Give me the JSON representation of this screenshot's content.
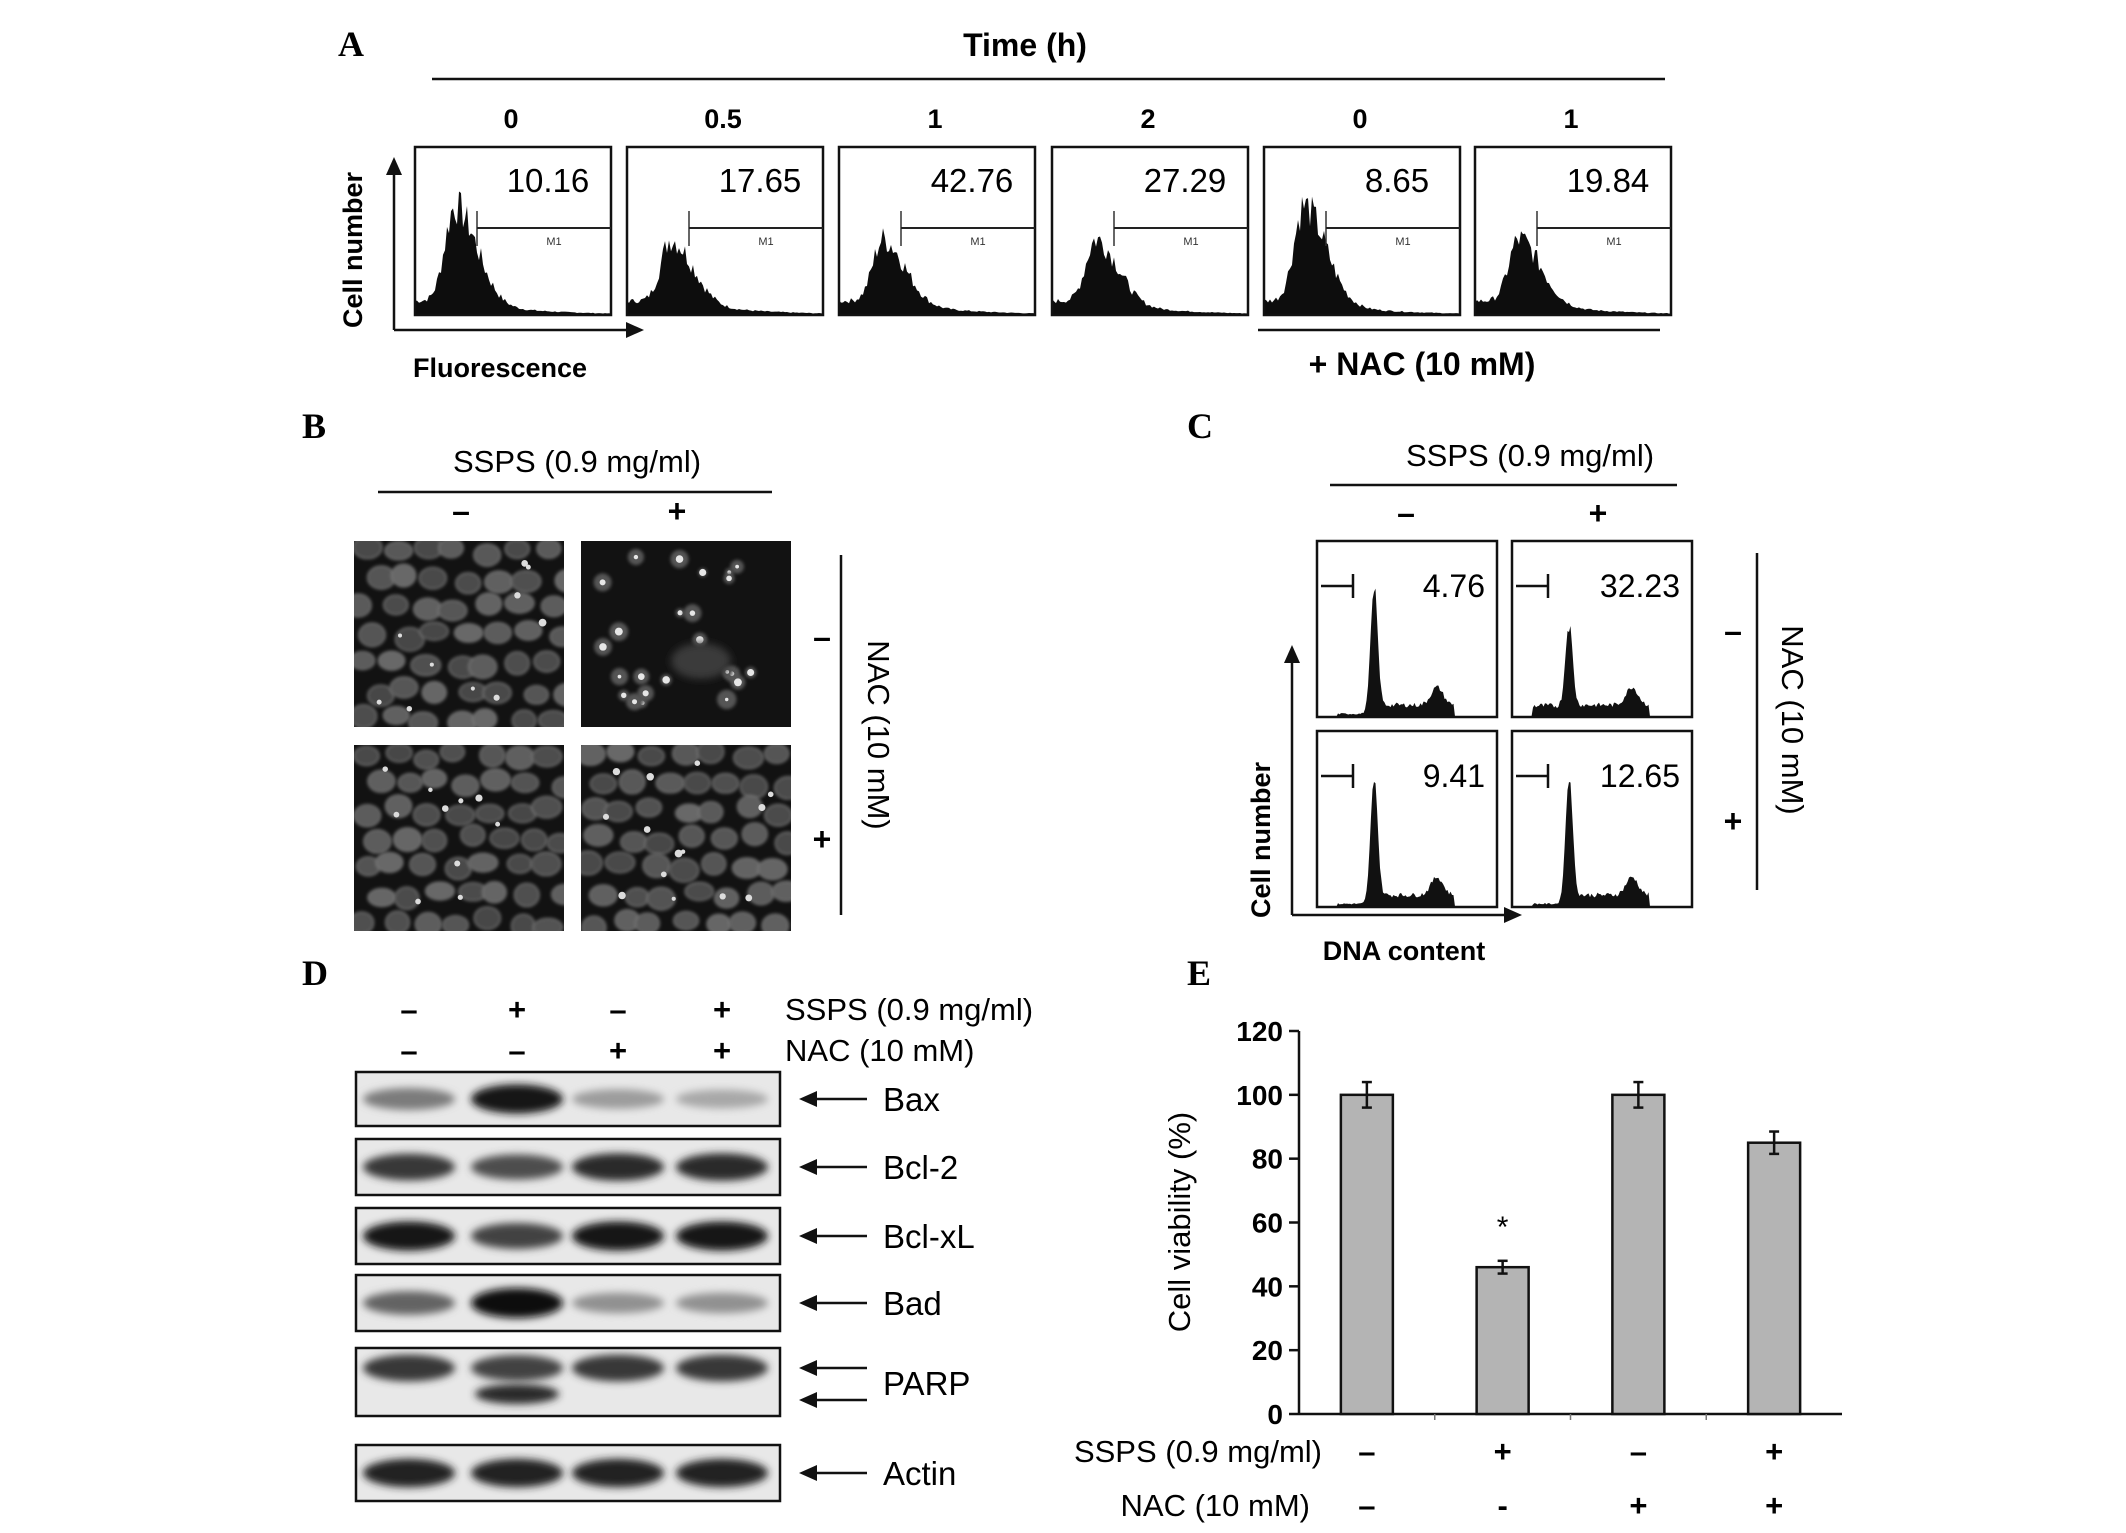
{
  "panelA": {
    "letter": "A",
    "time_header": "Time (h)",
    "y_label": "Cell number",
    "x_label": "Fluorescence",
    "gate_label": "M1",
    "nac_label": "+ NAC (10 mM)",
    "histograms": [
      {
        "time": "0",
        "value": "10.16"
      },
      {
        "time": "0.5",
        "value": "17.65"
      },
      {
        "time": "1",
        "value": "42.76"
      },
      {
        "time": "2",
        "value": "27.29"
      },
      {
        "time": "0",
        "value": "8.65"
      },
      {
        "time": "1",
        "value": "19.84"
      }
    ]
  },
  "panelB": {
    "letter": "B",
    "ssps_label": "SSPS (0.9 mg/ml)",
    "col_signs": [
      "–",
      "+"
    ],
    "row_signs": [
      "–",
      "+"
    ],
    "nac_label": "NAC (10 mM)"
  },
  "panelC": {
    "letter": "C",
    "ssps_label": "SSPS (0.9 mg/ml)",
    "col_signs": [
      "–",
      "+"
    ],
    "row_signs": [
      "–",
      "+"
    ],
    "nac_label": "NAC (10 mM)",
    "y_label": "Cell number",
    "x_label": "DNA content",
    "values": [
      "4.76",
      "32.23",
      "9.41",
      "12.65"
    ]
  },
  "panelD": {
    "letter": "D",
    "ssps_label": "SSPS (0.9 mg/ml)",
    "nac_label": "NAC (10 mM)",
    "ssps_signs": [
      "–",
      "+",
      "–",
      "+"
    ],
    "nac_signs": [
      "–",
      "–",
      "+",
      "+"
    ],
    "blots": [
      {
        "label": "Bax",
        "intensity": [
          0.5,
          0.95,
          0.35,
          0.3
        ]
      },
      {
        "label": "Bcl-2",
        "intensity": [
          0.8,
          0.7,
          0.85,
          0.85
        ]
      },
      {
        "label": "Bcl-xL",
        "intensity": [
          0.95,
          0.75,
          0.95,
          0.95
        ]
      },
      {
        "label": "Bad",
        "intensity": [
          0.6,
          1.0,
          0.4,
          0.4
        ]
      },
      {
        "label": "PARP",
        "intensity": [
          0.8,
          0.75,
          0.8,
          0.8
        ]
      },
      {
        "label": "Actin",
        "intensity": [
          0.9,
          0.9,
          0.9,
          0.9
        ]
      }
    ]
  },
  "chart_data": {
    "type": "bar",
    "panel_letter": "E",
    "categories": [
      "1",
      "2",
      "3",
      "4"
    ],
    "values": [
      100,
      46,
      100,
      85
    ],
    "errors": [
      4,
      2,
      4,
      3.5
    ],
    "ylabel": "Cell viability (%)",
    "ylim": [
      0,
      120
    ],
    "yticks": [
      "0",
      "20",
      "40",
      "60",
      "80",
      "100",
      "120"
    ],
    "significance": [
      "",
      "*",
      "",
      ""
    ],
    "bar_color": "#b4b4b4",
    "row_labels": [
      "SSPS (0.9 mg/ml)",
      "NAC (10 mM)"
    ],
    "ssps_signs": [
      "–",
      "+",
      "–",
      "+"
    ],
    "nac_signs": [
      "–",
      "-",
      "+",
      "+"
    ]
  }
}
